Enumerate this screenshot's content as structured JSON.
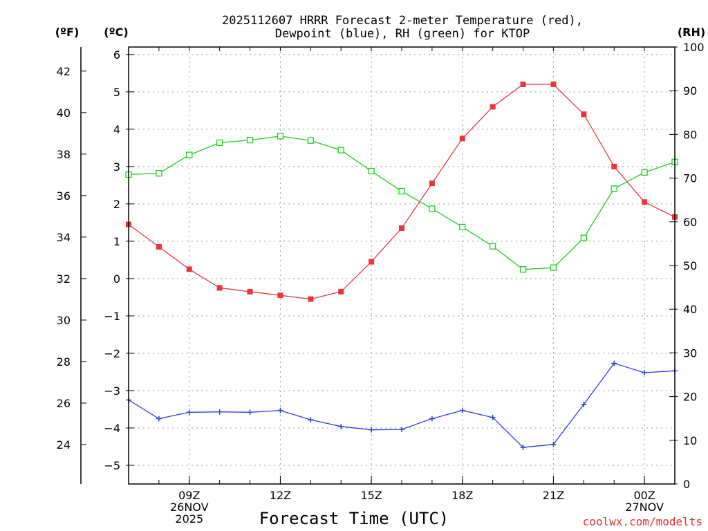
{
  "chart_data": {
    "type": "line",
    "title_line1": "2025112607 HRRR Forecast 2-meter Temperature (red),",
    "title_line2": "Dewpoint (blue), RH (green) for KTOP",
    "xlabel": "Forecast Time (UTC)",
    "credit": "coolwx.com/modelts",
    "unit_f": "(ºF)",
    "unit_c": "(ºC)",
    "unit_rh": "(RH)",
    "celsius_range": [
      -5.5,
      6.2
    ],
    "rh_range": [
      0,
      100
    ],
    "fahrenheit_ticks": [
      "24",
      "26",
      "28",
      "30",
      "32",
      "34",
      "36",
      "38",
      "40",
      "42"
    ],
    "celsius_ticks": [
      "−5",
      "−4",
      "−3",
      "−2",
      "−1",
      "0",
      "1",
      "2",
      "3",
      "4",
      "5",
      "6"
    ],
    "rh_ticks": [
      "0",
      "10",
      "20",
      "30",
      "40",
      "50",
      "60",
      "70",
      "80",
      "90",
      "100"
    ],
    "x_hours": [
      7,
      8,
      9,
      10,
      11,
      12,
      13,
      14,
      15,
      16,
      17,
      18,
      19,
      20,
      21,
      22,
      23,
      24,
      25
    ],
    "x_range": [
      7,
      25
    ],
    "x_ticks": [
      {
        "hour": 9,
        "lines": [
          "09Z",
          "26NOV",
          "2025"
        ]
      },
      {
        "hour": 12,
        "lines": [
          "12Z"
        ]
      },
      {
        "hour": 15,
        "lines": [
          "15Z"
        ]
      },
      {
        "hour": 18,
        "lines": [
          "18Z"
        ]
      },
      {
        "hour": 21,
        "lines": [
          "21Z"
        ]
      },
      {
        "hour": 24,
        "lines": [
          "00Z",
          "27NOV"
        ]
      }
    ],
    "series": [
      {
        "name": "Temperature",
        "units": "C",
        "color": "#e8363e",
        "marker": "filled-square",
        "values": [
          1.45,
          0.85,
          0.25,
          -0.25,
          -0.35,
          -0.45,
          -0.55,
          -0.35,
          0.45,
          1.35,
          2.55,
          3.75,
          4.6,
          5.2,
          5.2,
          4.4,
          3.0,
          2.05,
          1.65
        ]
      },
      {
        "name": "Dewpoint",
        "units": "C",
        "color": "#2d3fe0",
        "marker": "plus",
        "values": [
          -3.25,
          -3.75,
          -3.58,
          -3.57,
          -3.58,
          -3.53,
          -3.78,
          -3.96,
          -4.05,
          -4.04,
          -3.75,
          -3.53,
          -3.72,
          -4.52,
          -4.44,
          -3.37,
          -2.27,
          -2.52,
          -2.47
        ]
      },
      {
        "name": "RH",
        "units": "%",
        "color": "#22cc22",
        "marker": "open-square",
        "values": [
          70.8,
          71.1,
          75.3,
          78.1,
          78.7,
          79.6,
          78.6,
          76.4,
          71.6,
          67.0,
          63.0,
          58.8,
          54.4,
          49.1,
          49.5,
          56.3,
          67.6,
          71.3,
          73.7
        ]
      }
    ]
  }
}
